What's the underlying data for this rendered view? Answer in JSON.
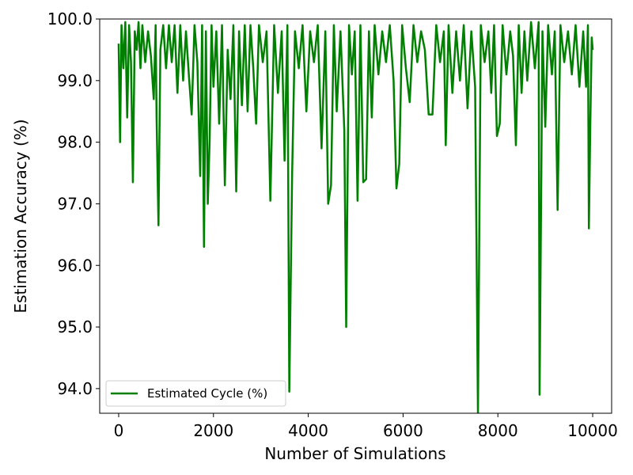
{
  "chart_data": {
    "type": "line",
    "title": "",
    "xlabel": "Number of Simulations",
    "ylabel": "Estimation Accuracy (%)",
    "xlim": [
      -400,
      10400
    ],
    "ylim": [
      93.6,
      100.0
    ],
    "x_ticks": [
      0,
      2000,
      4000,
      6000,
      8000,
      10000
    ],
    "x_tick_labels": [
      "0",
      "2000",
      "4000",
      "6000",
      "8000",
      "10000"
    ],
    "y_ticks": [
      94.0,
      95.0,
      96.0,
      97.0,
      98.0,
      99.0,
      100.0
    ],
    "y_tick_labels": [
      "94.0",
      "95.0",
      "96.0",
      "97.0",
      "98.0",
      "99.0",
      "100.0"
    ],
    "grid": false,
    "legend_position": "lower-left",
    "series": [
      {
        "name": "Estimated Cycle (%)",
        "color": "#008000",
        "points": [
          [
            0,
            99.6
          ],
          [
            30,
            98.0
          ],
          [
            60,
            99.9
          ],
          [
            100,
            99.2
          ],
          [
            140,
            99.95
          ],
          [
            180,
            98.4
          ],
          [
            220,
            99.9
          ],
          [
            260,
            99.3
          ],
          [
            300,
            97.35
          ],
          [
            340,
            99.8
          ],
          [
            380,
            99.5
          ],
          [
            420,
            99.95
          ],
          [
            460,
            99.2
          ],
          [
            500,
            99.9
          ],
          [
            560,
            99.3
          ],
          [
            620,
            99.8
          ],
          [
            680,
            99.4
          ],
          [
            740,
            98.7
          ],
          [
            780,
            99.9
          ],
          [
            800,
            98.4
          ],
          [
            840,
            96.65
          ],
          [
            880,
            99.5
          ],
          [
            940,
            99.9
          ],
          [
            1000,
            99.2
          ],
          [
            1060,
            99.9
          ],
          [
            1120,
            99.3
          ],
          [
            1180,
            99.9
          ],
          [
            1240,
            98.8
          ],
          [
            1300,
            99.9
          ],
          [
            1360,
            99.0
          ],
          [
            1420,
            99.8
          ],
          [
            1480,
            99.1
          ],
          [
            1540,
            98.45
          ],
          [
            1600,
            99.9
          ],
          [
            1660,
            99.3
          ],
          [
            1720,
            97.45
          ],
          [
            1760,
            99.9
          ],
          [
            1800,
            96.3
          ],
          [
            1840,
            99.8
          ],
          [
            1880,
            97.0
          ],
          [
            1920,
            98.05
          ],
          [
            1960,
            99.9
          ],
          [
            2000,
            98.9
          ],
          [
            2060,
            99.8
          ],
          [
            2120,
            98.3
          ],
          [
            2180,
            99.9
          ],
          [
            2240,
            97.3
          ],
          [
            2300,
            99.5
          ],
          [
            2360,
            98.7
          ],
          [
            2420,
            99.9
          ],
          [
            2480,
            97.2
          ],
          [
            2540,
            99.8
          ],
          [
            2600,
            98.6
          ],
          [
            2660,
            99.9
          ],
          [
            2720,
            98.5
          ],
          [
            2780,
            99.9
          ],
          [
            2840,
            99.2
          ],
          [
            2900,
            98.3
          ],
          [
            2960,
            99.9
          ],
          [
            3040,
            99.3
          ],
          [
            3120,
            99.8
          ],
          [
            3200,
            97.05
          ],
          [
            3280,
            99.9
          ],
          [
            3360,
            98.8
          ],
          [
            3440,
            99.8
          ],
          [
            3500,
            97.7
          ],
          [
            3560,
            99.9
          ],
          [
            3600,
            93.95
          ],
          [
            3660,
            97.5
          ],
          [
            3720,
            99.8
          ],
          [
            3800,
            99.2
          ],
          [
            3880,
            99.9
          ],
          [
            3960,
            98.5
          ],
          [
            4040,
            99.8
          ],
          [
            4120,
            99.3
          ],
          [
            4200,
            99.9
          ],
          [
            4280,
            97.9
          ],
          [
            4360,
            99.8
          ],
          [
            4420,
            97.0
          ],
          [
            4480,
            97.3
          ],
          [
            4540,
            99.9
          ],
          [
            4600,
            98.5
          ],
          [
            4680,
            99.8
          ],
          [
            4760,
            98.2
          ],
          [
            4800,
            95.0
          ],
          [
            4860,
            99.9
          ],
          [
            4920,
            99.1
          ],
          [
            4980,
            99.8
          ],
          [
            5040,
            97.05
          ],
          [
            5100,
            99.9
          ],
          [
            5160,
            97.35
          ],
          [
            5220,
            97.4
          ],
          [
            5280,
            99.8
          ],
          [
            5340,
            98.4
          ],
          [
            5400,
            99.9
          ],
          [
            5480,
            99.1
          ],
          [
            5560,
            99.8
          ],
          [
            5640,
            99.3
          ],
          [
            5720,
            99.9
          ],
          [
            5800,
            99.0
          ],
          [
            5860,
            97.25
          ],
          [
            5920,
            97.65
          ],
          [
            5980,
            99.9
          ],
          [
            6060,
            99.2
          ],
          [
            6140,
            98.65
          ],
          [
            6220,
            99.9
          ],
          [
            6300,
            99.3
          ],
          [
            6380,
            99.8
          ],
          [
            6460,
            99.5
          ],
          [
            6540,
            98.45
          ],
          [
            6620,
            98.45
          ],
          [
            6700,
            99.9
          ],
          [
            6780,
            99.3
          ],
          [
            6860,
            99.8
          ],
          [
            6900,
            97.95
          ],
          [
            6960,
            99.9
          ],
          [
            7040,
            98.8
          ],
          [
            7120,
            99.8
          ],
          [
            7200,
            99.0
          ],
          [
            7280,
            99.9
          ],
          [
            7360,
            98.55
          ],
          [
            7440,
            99.8
          ],
          [
            7520,
            98.9
          ],
          [
            7580,
            93.6
          ],
          [
            7640,
            99.9
          ],
          [
            7720,
            99.3
          ],
          [
            7800,
            99.8
          ],
          [
            7860,
            98.8
          ],
          [
            7920,
            99.9
          ],
          [
            7980,
            98.1
          ],
          [
            8040,
            98.3
          ],
          [
            8100,
            99.9
          ],
          [
            8180,
            99.1
          ],
          [
            8260,
            99.8
          ],
          [
            8320,
            99.4
          ],
          [
            8380,
            97.95
          ],
          [
            8440,
            99.9
          ],
          [
            8500,
            98.8
          ],
          [
            8560,
            99.8
          ],
          [
            8620,
            99.0
          ],
          [
            8700,
            99.95
          ],
          [
            8780,
            99.2
          ],
          [
            8860,
            99.95
          ],
          [
            8880,
            93.9
          ],
          [
            8940,
            99.8
          ],
          [
            9000,
            98.25
          ],
          [
            9060,
            99.9
          ],
          [
            9140,
            99.1
          ],
          [
            9200,
            99.8
          ],
          [
            9260,
            96.9
          ],
          [
            9320,
            99.9
          ],
          [
            9400,
            99.3
          ],
          [
            9480,
            99.8
          ],
          [
            9560,
            99.1
          ],
          [
            9640,
            99.9
          ],
          [
            9720,
            98.9
          ],
          [
            9800,
            99.8
          ],
          [
            9860,
            98.9
          ],
          [
            9900,
            99.9
          ],
          [
            9920,
            96.6
          ],
          [
            9950,
            98.3
          ],
          [
            9980,
            99.7
          ],
          [
            10000,
            99.5
          ]
        ]
      }
    ]
  }
}
